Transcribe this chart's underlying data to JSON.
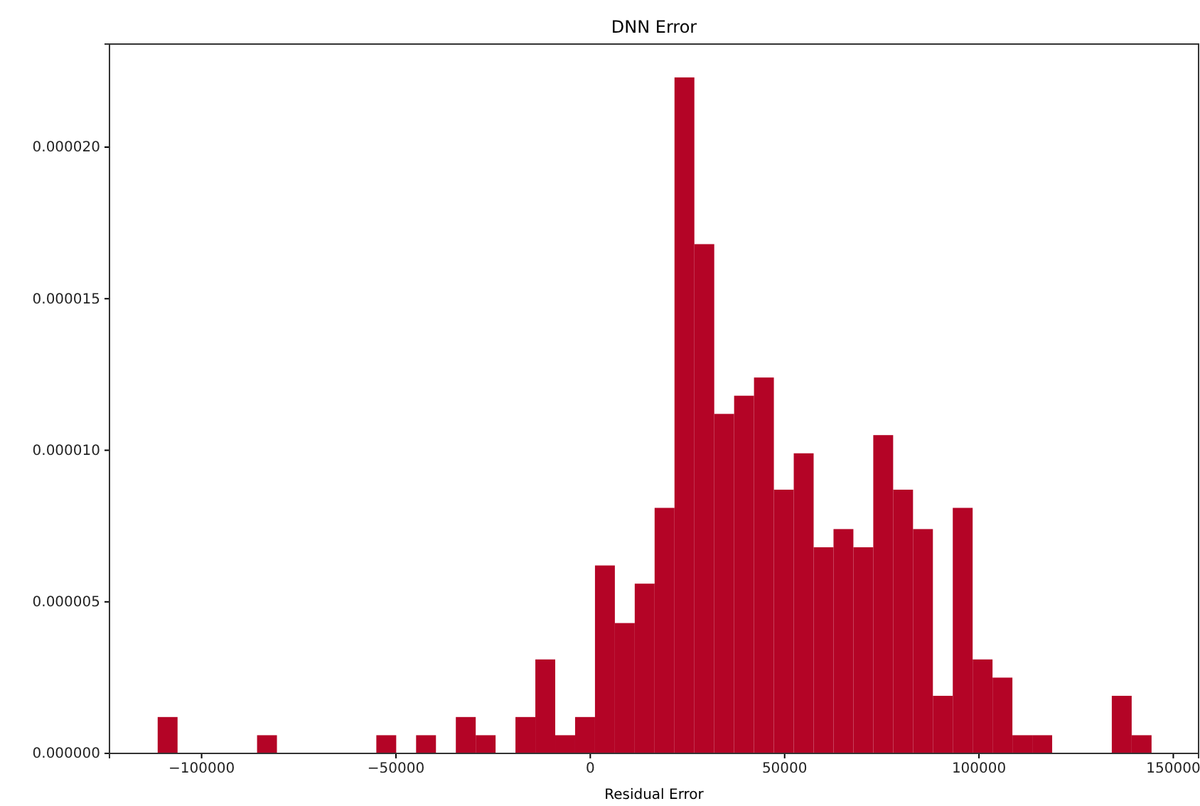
{
  "chart_data": {
    "type": "histogram",
    "title": "DNN Error",
    "xlabel": "Residual Error",
    "color": "#b40426",
    "bins": [
      -111300,
      -106186,
      -101072,
      -95958,
      -90844,
      -85730,
      -80616,
      -75502,
      -70388,
      -65274,
      -60160,
      -55046,
      -49932,
      -44818,
      -39704,
      -34590,
      -29476,
      -24362,
      -19248,
      -14134,
      -9020,
      -3906,
      1208,
      6322,
      11436,
      16550,
      21664,
      26778,
      31892,
      37006,
      42120,
      47234,
      52348,
      57462,
      62576,
      67690,
      72804,
      77918,
      83032,
      88146,
      93260,
      98374,
      103488,
      108602,
      113716,
      118830,
      123944,
      129058,
      134172,
      139286,
      144400
    ],
    "values": [
      1.2e-06,
      0,
      0,
      0,
      0,
      6e-07,
      0,
      0,
      0,
      0,
      0,
      6e-07,
      0,
      6e-07,
      0,
      1.2e-06,
      6e-07,
      0,
      1.2e-06,
      3.1e-06,
      6e-07,
      1.2e-06,
      6.2e-06,
      4.3e-06,
      5.6e-06,
      8.1e-06,
      2.23e-05,
      1.68e-05,
      1.12e-05,
      1.18e-05,
      1.24e-05,
      8.7e-06,
      9.9e-06,
      6.8e-06,
      7.4e-06,
      6.8e-06,
      1.05e-05,
      8.7e-06,
      7.4e-06,
      1.9e-06,
      8.1e-06,
      3.1e-06,
      2.5e-06,
      6e-07,
      6e-07,
      0,
      0,
      0,
      1.9e-06,
      6e-07
    ],
    "xlim": [
      -123700,
      156500
    ],
    "xticks": [
      {
        "value": -100000,
        "label": "−100000"
      },
      {
        "value": -50000,
        "label": "−50000"
      },
      0,
      50000,
      100000,
      150000
    ],
    "ylim": [
      0,
      2.34e-05
    ],
    "yticks": [
      {
        "value": 0,
        "label": "0.000000"
      },
      {
        "value": 5e-06,
        "label": "0.000005"
      },
      {
        "value": 1e-05,
        "label": "0.000010"
      },
      {
        "value": 1.5e-05,
        "label": "0.000015"
      },
      {
        "value": 2e-05,
        "label": "0.000020"
      }
    ],
    "grid": false
  }
}
